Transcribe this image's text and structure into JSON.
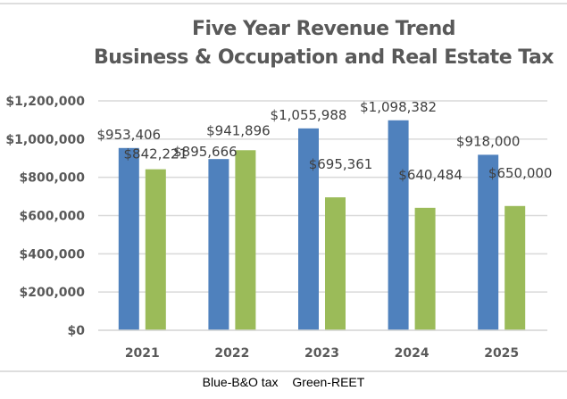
{
  "chart_data": {
    "type": "bar",
    "title": "Five Year Revenue Trend",
    "subtitle": "Business & Occupation and Real Estate Tax",
    "categories": [
      "2021",
      "2022",
      "2023",
      "2024",
      "2025"
    ],
    "series": [
      {
        "name": "B&O tax",
        "color": "#4f81bd",
        "values": [
          953406,
          895666,
          1055988,
          1098382,
          918000
        ],
        "labels": [
          "$953,406",
          "$895,666",
          "$1,055,988",
          "$1,098,382",
          "$918,000"
        ]
      },
      {
        "name": "REET",
        "color": "#9bbb59",
        "values": [
          842221,
          941896,
          695361,
          640484,
          650000
        ],
        "labels": [
          "$842,221",
          "$941,896",
          "$695,361",
          "$640,484",
          "$650,000"
        ]
      }
    ],
    "yticks": [
      0,
      200000,
      400000,
      600000,
      800000,
      1000000,
      1200000
    ],
    "ytick_labels": [
      "$0",
      "$200,000",
      "$400,000",
      "$600,000",
      "$800,000",
      "$1,000,000",
      "$1,200,000"
    ],
    "ylim": [
      0,
      1200000
    ],
    "grid": true,
    "xlabel": "",
    "ylabel": "",
    "legend": {
      "position": "bottom",
      "items": [
        "Blue-B&O tax",
        "Green-REET"
      ]
    }
  }
}
